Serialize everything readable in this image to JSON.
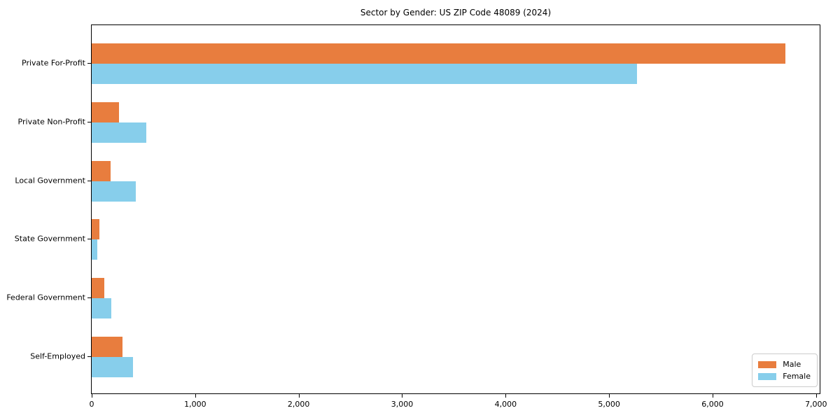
{
  "title": "Sector by Gender: US ZIP Code 48089 (2024)",
  "chart_data": {
    "type": "bar",
    "orientation": "horizontal",
    "title": "Sector by Gender: US ZIP Code 48089 (2024)",
    "xlabel": "",
    "ylabel": "",
    "categories": [
      "Private For-Profit",
      "Private Non-Profit",
      "Local Government",
      "State Government",
      "Federal Government",
      "Self-Employed"
    ],
    "series": [
      {
        "name": "Male",
        "color": "#e87d3e",
        "values": [
          6700,
          265,
          185,
          75,
          120,
          295
        ]
      },
      {
        "name": "Female",
        "color": "#87ceeb",
        "values": [
          5270,
          530,
          425,
          55,
          190,
          400
        ]
      }
    ],
    "xlim": [
      0,
      7035
    ],
    "x_ticks": [
      0,
      1000,
      2000,
      3000,
      4000,
      5000,
      6000,
      7000
    ],
    "x_tick_labels": [
      "0",
      "1,000",
      "2,000",
      "3,000",
      "4,000",
      "5,000",
      "6,000",
      "7,000"
    ],
    "grid": false,
    "legend_position": "lower right"
  }
}
